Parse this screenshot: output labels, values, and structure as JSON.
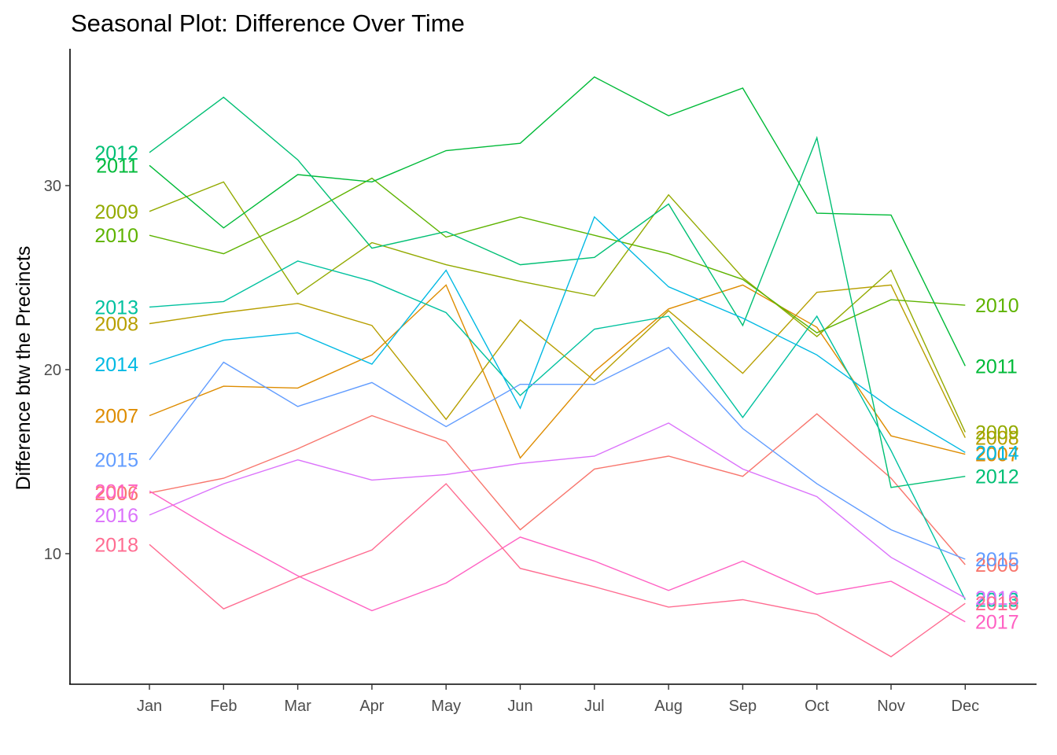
{
  "chart_data": {
    "type": "line",
    "title": "Seasonal Plot: Difference Over Time",
    "xlabel": "",
    "ylabel": "Difference btw the Precincts",
    "categories": [
      "Jan",
      "Feb",
      "Mar",
      "Apr",
      "May",
      "Jun",
      "Jul",
      "Aug",
      "Sep",
      "Oct",
      "Nov",
      "Dec"
    ],
    "yticks": [
      10,
      20,
      30
    ],
    "ylim": [
      3,
      38.5
    ],
    "grid": false,
    "legend": "direct labels at both ends of each line",
    "series": [
      {
        "name": "2006",
        "color": "#F8766D",
        "values": [
          13.3,
          14.1,
          15.7,
          17.5,
          16.1,
          11.3,
          14.6,
          15.3,
          14.2,
          17.6,
          14.1,
          9.4
        ]
      },
      {
        "name": "2007",
        "color": "#DE8C00",
        "values": [
          17.5,
          19.1,
          19.0,
          20.8,
          24.6,
          15.2,
          19.9,
          23.3,
          24.6,
          22.3,
          16.4,
          15.4
        ]
      },
      {
        "name": "2008",
        "color": "#B79F00",
        "values": [
          22.5,
          23.1,
          23.6,
          22.4,
          17.3,
          22.7,
          19.4,
          23.2,
          19.8,
          24.2,
          24.6,
          16.3
        ]
      },
      {
        "name": "2009",
        "color": "#93AA00",
        "values": [
          28.6,
          30.2,
          24.1,
          26.9,
          25.7,
          24.8,
          24.0,
          29.5,
          25.0,
          21.8,
          25.4,
          16.6
        ]
      },
      {
        "name": "2010",
        "color": "#5EB300",
        "values": [
          27.3,
          26.3,
          28.2,
          30.4,
          27.2,
          28.3,
          27.3,
          26.3,
          24.9,
          22.0,
          23.8,
          23.5
        ]
      },
      {
        "name": "2011",
        "color": "#00BA38",
        "values": [
          31.1,
          27.7,
          30.6,
          30.2,
          31.9,
          32.3,
          35.9,
          33.8,
          35.3,
          28.5,
          28.4,
          20.2
        ]
      },
      {
        "name": "2012",
        "color": "#00BF74",
        "values": [
          31.8,
          34.8,
          31.4,
          26.6,
          27.5,
          25.7,
          26.1,
          29.0,
          22.4,
          32.6,
          13.6,
          14.2
        ]
      },
      {
        "name": "2013",
        "color": "#00C19F",
        "values": [
          23.4,
          23.7,
          25.9,
          24.8,
          23.1,
          18.6,
          22.2,
          22.9,
          17.4,
          22.9,
          15.6,
          7.5
        ]
      },
      {
        "name": "2014",
        "color": "#00B9E3",
        "values": [
          20.3,
          21.6,
          22.0,
          20.3,
          25.4,
          17.9,
          28.3,
          24.5,
          22.8,
          20.8,
          17.9,
          15.5
        ]
      },
      {
        "name": "2015",
        "color": "#619CFF",
        "values": [
          15.1,
          20.4,
          18.0,
          19.3,
          16.9,
          19.2,
          19.2,
          21.2,
          16.8,
          13.8,
          11.3,
          9.7
        ]
      },
      {
        "name": "2016",
        "color": "#DB72FB",
        "values": [
          12.1,
          13.8,
          15.1,
          14.0,
          14.3,
          14.9,
          15.3,
          17.1,
          14.6,
          13.1,
          9.8,
          7.6
        ]
      },
      {
        "name": "2017",
        "color": "#FF61C3",
        "values": [
          13.4,
          11.0,
          8.8,
          6.9,
          8.4,
          10.9,
          9.6,
          8.0,
          9.6,
          7.8,
          8.5,
          6.3
        ]
      },
      {
        "name": "2018",
        "color": "#FF6C91",
        "values": [
          10.5,
          7.0,
          8.7,
          10.2,
          13.8,
          9.2,
          8.2,
          7.1,
          7.5,
          6.7,
          4.4,
          7.3
        ]
      }
    ]
  }
}
